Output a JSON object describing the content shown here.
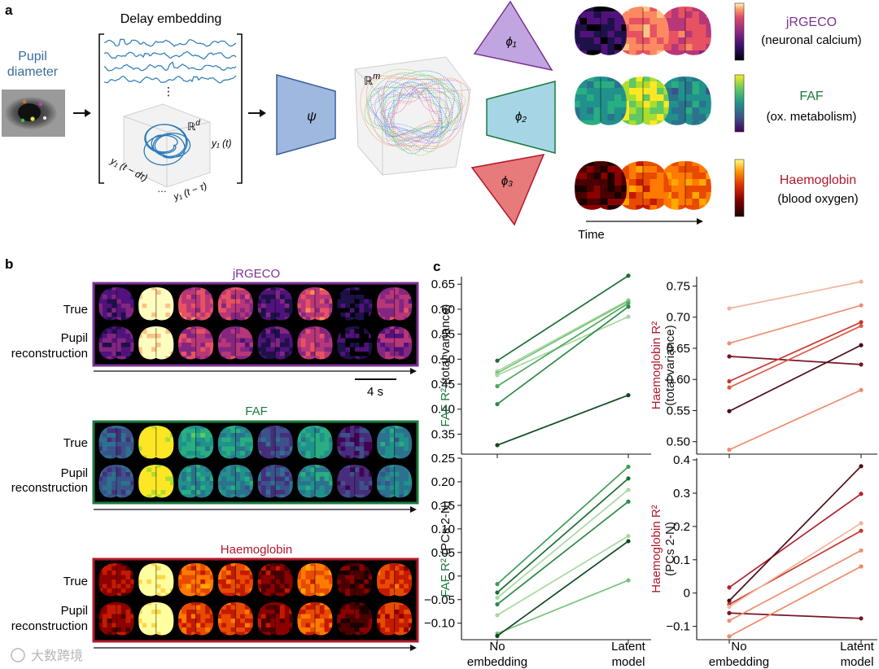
{
  "panel_a": {
    "letter": "a",
    "pupil_title": [
      "Pupil",
      "diameter"
    ],
    "delay_title": "Delay embedding",
    "rd": "ℝ",
    "rd_sup": "d",
    "axis_y1t": "y₁ (t)",
    "axis_tau": "y₁ (t − τ)",
    "axis_dtau": "y₁ (t − dτ)",
    "axis_dots": "…",
    "dots": "⋮",
    "psi": "ψ",
    "rm": "ℝ",
    "rm_sup": "m",
    "phi1": "ϕ₁",
    "phi2": "ϕ₂",
    "phi3": "ϕ₃",
    "time_label": "Time",
    "modalities": [
      {
        "name": "jRGECO",
        "desc": "(neuronal calcium)",
        "color": "#7b3294"
      },
      {
        "name": "FAF",
        "desc": "(ox. metabolism)",
        "color": "#1b7a3e"
      },
      {
        "name": "Haemoglobin",
        "desc": "(blood oxygen)",
        "color": "#b2182b"
      }
    ]
  },
  "panel_b": {
    "letter": "b",
    "row_true": "True",
    "row_recon": [
      "Pupil",
      "reconstruction"
    ],
    "scalebar": "4 s",
    "groups": [
      {
        "title": "jRGECO",
        "color": "#7b3294"
      },
      {
        "title": "FAF",
        "color": "#1b7a3e"
      },
      {
        "title": "Haemoglobin",
        "color": "#b2182b"
      }
    ]
  },
  "panel_c": {
    "letter": "c",
    "x_categories": [
      [
        "No",
        "embedding"
      ],
      [
        "Latent",
        "model"
      ]
    ],
    "watermark": "大数跨境"
  },
  "chart_data": [
    {
      "type": "line",
      "ylabel_colored": "FAF R²",
      "ylabel_rest": "(total variance)",
      "ylabel_color": "#1b7a3e",
      "ylim": [
        0.31,
        0.665
      ],
      "ticks": [
        0.35,
        0.4,
        0.45,
        0.5,
        0.55,
        0.6,
        0.65
      ],
      "tick_labels": [
        "0.35",
        "0.40",
        "0.45",
        "0.50",
        "0.55",
        "0.60",
        "0.65"
      ],
      "categories": [
        "No embedding",
        "Latent model"
      ],
      "series": [
        {
          "values": [
            0.497,
            0.667
          ],
          "color": "#1b6e35"
        },
        {
          "values": [
            0.476,
            0.618
          ],
          "color": "#a9d8a0"
        },
        {
          "values": [
            0.472,
            0.616
          ],
          "color": "#78c47a"
        },
        {
          "values": [
            0.468,
            0.585
          ],
          "color": "#a9d8a0"
        },
        {
          "values": [
            0.446,
            0.612
          ],
          "color": "#4fa860"
        },
        {
          "values": [
            0.41,
            0.605
          ],
          "color": "#2d8a46"
        },
        {
          "values": [
            0.328,
            0.428
          ],
          "color": "#0f4a22"
        }
      ]
    },
    {
      "type": "line",
      "ylabel_colored": "Haemoglobin R²",
      "ylabel_rest": "(total variance)",
      "ylabel_color": "#b2182b",
      "ylim": [
        0.48,
        0.765
      ],
      "ticks": [
        0.5,
        0.55,
        0.6,
        0.65,
        0.7,
        0.75
      ],
      "tick_labels": [
        "0.50",
        "0.55",
        "0.60",
        "0.65",
        "0.70",
        "0.75"
      ],
      "categories": [
        "No embedding",
        "Latent model"
      ],
      "series": [
        {
          "values": [
            0.714,
            0.757
          ],
          "color": "#f4b49c"
        },
        {
          "values": [
            0.658,
            0.719
          ],
          "color": "#ee8f74"
        },
        {
          "values": [
            0.637,
            0.624
          ],
          "color": "#7a1526"
        },
        {
          "values": [
            0.597,
            0.692
          ],
          "color": "#c7372d"
        },
        {
          "values": [
            0.587,
            0.686
          ],
          "color": "#dd5a47"
        },
        {
          "values": [
            0.549,
            0.655
          ],
          "color": "#4a0d18"
        },
        {
          "values": [
            0.487,
            0.583
          ],
          "color": "#f08a6a"
        }
      ]
    },
    {
      "type": "line",
      "ylabel_colored": "FAF R²",
      "ylabel_rest": "(PCs 2-N)",
      "ylabel_color": "#1b7a3e",
      "ylim": [
        -0.135,
        0.25
      ],
      "ticks": [
        -0.1,
        -0.05,
        0,
        0.05,
        0.1,
        0.15,
        0.2,
        0.25
      ],
      "tick_labels": [
        "−0.10",
        "−0.05",
        "0",
        "0.05",
        "0.10",
        "0.15",
        "0.20",
        "0.25"
      ],
      "categories": [
        "No embedding",
        "Latent model"
      ],
      "series": [
        {
          "values": [
            -0.017,
            0.232
          ],
          "color": "#3f9c57"
        },
        {
          "values": [
            -0.035,
            0.207
          ],
          "color": "#1b6e35"
        },
        {
          "values": [
            -0.046,
            0.183
          ],
          "color": "#a9d8a0"
        },
        {
          "values": [
            -0.06,
            0.158
          ],
          "color": "#2d8a46"
        },
        {
          "values": [
            -0.083,
            0.085
          ],
          "color": "#a9d8a0"
        },
        {
          "values": [
            -0.122,
            -0.009
          ],
          "color": "#78c47a"
        },
        {
          "values": [
            -0.127,
            0.074
          ],
          "color": "#0f4a22"
        }
      ]
    },
    {
      "type": "line",
      "ylabel_colored": "Haemoglobin R²",
      "ylabel_rest": "(PCs 2-N)",
      "ylabel_color": "#b2182b",
      "ylim": [
        -0.14,
        0.405
      ],
      "ticks": [
        -0.1,
        0,
        0.1,
        0.2,
        0.3,
        0.4
      ],
      "tick_labels": [
        "−0.1",
        "0",
        "0.1",
        "0.2",
        "0.3",
        "0.4"
      ],
      "categories": [
        "No embedding",
        "Latent model"
      ],
      "series": [
        {
          "values": [
            0.017,
            0.298
          ],
          "color": "#b3202e"
        },
        {
          "values": [
            -0.023,
            0.381
          ],
          "color": "#4a0d18"
        },
        {
          "values": [
            -0.034,
            0.187
          ],
          "color": "#c7372d"
        },
        {
          "values": [
            -0.041,
            0.21
          ],
          "color": "#f4b49c"
        },
        {
          "values": [
            -0.06,
            -0.076
          ],
          "color": "#7a1526"
        },
        {
          "values": [
            -0.083,
            0.128
          ],
          "color": "#ee8f74"
        },
        {
          "values": [
            -0.13,
            0.08
          ],
          "color": "#f08a6a"
        }
      ]
    }
  ]
}
